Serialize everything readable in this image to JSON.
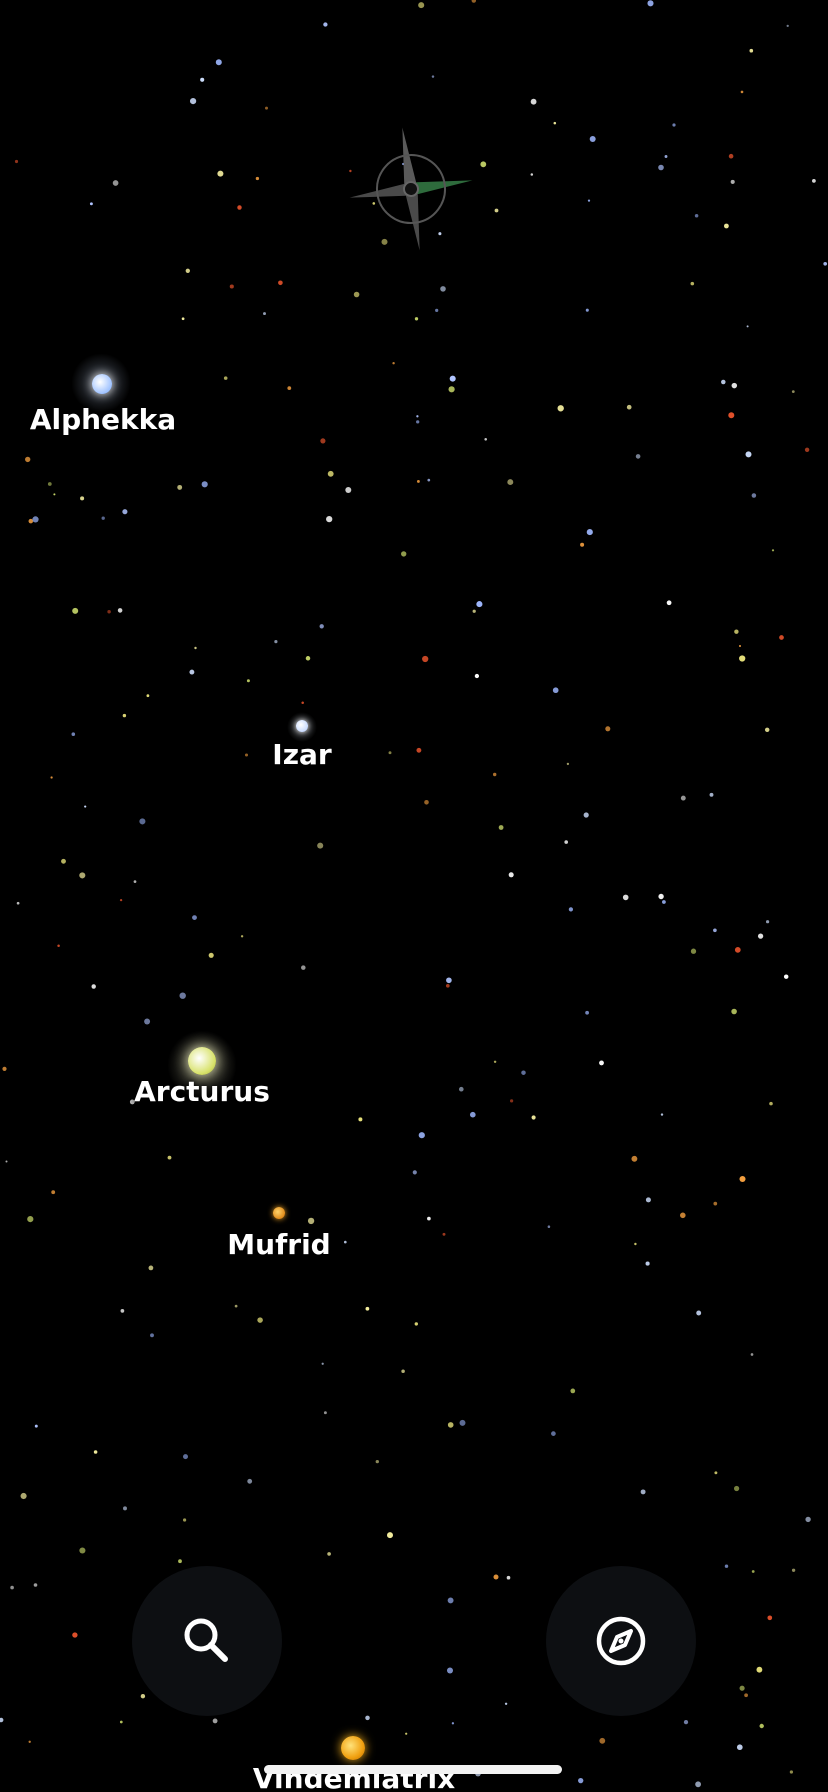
{
  "stars": [
    {
      "name": "Alphekka",
      "color": "#dbe9ff"
    },
    {
      "name": "Izar",
      "color": "#eef4ff"
    },
    {
      "name": "Arcturus",
      "color": "#f3f0a8"
    },
    {
      "name": "Mufrid",
      "color": "#f5a623"
    },
    {
      "name": "Vindemiatrix",
      "color": "#f7b21c"
    }
  ],
  "controls": {
    "search_icon": "search-icon",
    "navigate_icon": "compass-icon"
  },
  "colors": {
    "background": "#000000",
    "label": "#ffffff",
    "button_bg": "#0d0f12",
    "compass_accent": "#2e6b3c",
    "compass_gray": "#4a4a4a"
  }
}
